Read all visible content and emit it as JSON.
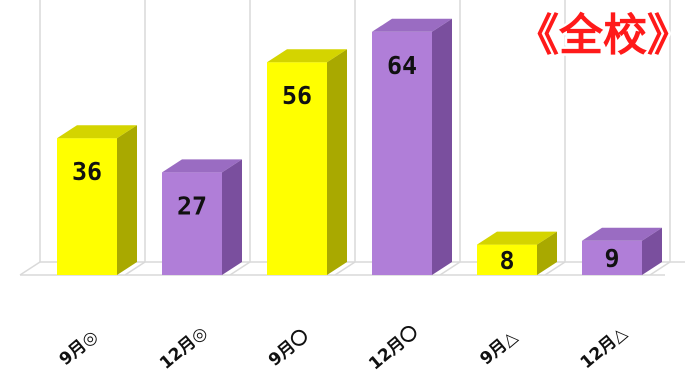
{
  "chart_data": {
    "type": "bar",
    "title": "《全校》",
    "categories": [
      "9月◎",
      "12月◎",
      "9月〇",
      "12月〇",
      "9月△",
      "12月△"
    ],
    "values": [
      36,
      27,
      56,
      64,
      8,
      9
    ],
    "data_labels": [
      "36",
      "27",
      "56",
      "64",
      "8",
      "9"
    ],
    "ylim": [
      0,
      70
    ],
    "grid": true,
    "legend": "none",
    "colors": {
      "yellow": {
        "front": "#ffff00",
        "side": "#a9a900",
        "top": "#d4d400"
      },
      "purple": {
        "front": "#b07ed8",
        "side": "#7a4f9e",
        "top": "#9a6cc2"
      },
      "grid": "#d9d9d9",
      "title": "#ff1a1a"
    },
    "bar_color_pattern": [
      "yellow",
      "purple",
      "yellow",
      "purple",
      "yellow",
      "purple"
    ]
  }
}
